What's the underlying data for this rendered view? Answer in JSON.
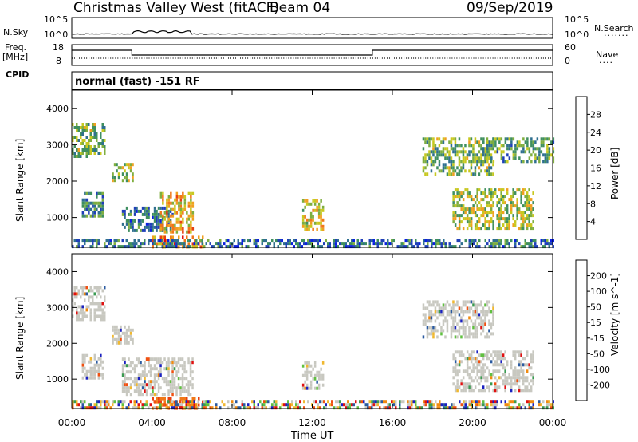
{
  "header": {
    "station": "Christmas Valley West (fitACF)",
    "beam": "Beam 04",
    "date": "09/Sep/2019"
  },
  "mode_text": "normal (fast) -151 RF",
  "left_labels": {
    "nsky": "N.Sky",
    "freq": "Freq.",
    "freq_unit": "[MHz]",
    "cpid": "CPID"
  },
  "right_labels": {
    "nsearch": "N.Search",
    "nsearch_marks": "·······",
    "nave": "Nave",
    "nave_marks": "····"
  },
  "noise_axis": {
    "top": "10^5",
    "bottom": "10^0"
  },
  "freq_axis": {
    "top": "18",
    "bottom": "8"
  },
  "nave_axis": {
    "top": "60",
    "bottom": "0"
  },
  "xaxis": {
    "label": "Time UT",
    "ticks": [
      "00:00",
      "04:00",
      "08:00",
      "12:00",
      "16:00",
      "20:00",
      "00:00"
    ]
  },
  "colors": {
    "power_scale": [
      "#0a1fe0",
      "#1f3fb8",
      "#2f6f8f",
      "#3f8f5f",
      "#7fae3f",
      "#c8c820",
      "#f0a020",
      "#f07818",
      "#e84010",
      "#e01010"
    ],
    "velocity_scale": [
      "#e01010",
      "#f05010",
      "#f08a10",
      "#f0b830",
      "#c8c8c0",
      "#c8c8c0",
      "#60c040",
      "#3a9a50",
      "#2a5aa0",
      "#1a20c0"
    ]
  },
  "chart_data": [
    {
      "type": "heatmap",
      "title": "",
      "ylabel": "Slant Range [km]",
      "xlabel": "",
      "ylim": [
        180,
        4500
      ],
      "yticks": [
        "1000",
        "2000",
        "3000",
        "4000"
      ],
      "colorbar": {
        "label": "Power [dB]",
        "range": [
          0,
          32
        ],
        "ticks": [
          "4",
          "8",
          "12",
          "16",
          "20",
          "24",
          "28"
        ]
      },
      "regions": [
        {
          "t0": 0.0,
          "t1": 1.6,
          "r0": 2700,
          "r1": 3600,
          "value": 14
        },
        {
          "t0": 2.0,
          "t1": 3.0,
          "r0": 2000,
          "r1": 2500,
          "value": 16
        },
        {
          "t0": 0.5,
          "t1": 1.5,
          "r0": 1000,
          "r1": 1700,
          "value": 10
        },
        {
          "t0": 2.5,
          "t1": 5.0,
          "r0": 600,
          "r1": 1300,
          "value": 8
        },
        {
          "t0": 4.4,
          "t1": 6.0,
          "r0": 600,
          "r1": 1700,
          "value": 20
        },
        {
          "t0": 4.0,
          "t1": 6.5,
          "r0": 200,
          "r1": 500,
          "value": 24
        },
        {
          "t0": 11.5,
          "t1": 12.5,
          "r0": 700,
          "r1": 1500,
          "value": 18
        },
        {
          "t0": 17.5,
          "t1": 21.0,
          "r0": 2200,
          "r1": 3200,
          "value": 14
        },
        {
          "t0": 20.5,
          "t1": 24.0,
          "r0": 2500,
          "r1": 3200,
          "value": 12
        },
        {
          "t0": 19.0,
          "t1": 23.0,
          "r0": 700,
          "r1": 1800,
          "value": 16
        },
        {
          "t0": 0.0,
          "t1": 24.0,
          "r0": 180,
          "r1": 420,
          "value": 8
        }
      ]
    },
    {
      "type": "heatmap",
      "title": "",
      "ylabel": "Slant Range [km]",
      "xlabel": "Time UT",
      "ylim": [
        180,
        4500
      ],
      "yticks": [
        "1000",
        "2000",
        "3000",
        "4000"
      ],
      "colorbar": {
        "label": "Velocity [m s^-1]",
        "ticks": [
          "-200",
          "-100",
          "-50",
          "-15",
          "15",
          "50",
          "100",
          "200"
        ]
      },
      "regions": [
        {
          "t0": 0.0,
          "t1": 1.6,
          "r0": 2700,
          "r1": 3600,
          "value": 0
        },
        {
          "t0": 2.0,
          "t1": 3.0,
          "r0": 2000,
          "r1": 2500,
          "value": 0
        },
        {
          "t0": 0.5,
          "t1": 1.5,
          "r0": 1000,
          "r1": 1700,
          "value": 0
        },
        {
          "t0": 2.5,
          "t1": 6.0,
          "r0": 600,
          "r1": 1600,
          "value": 0
        },
        {
          "t0": 4.0,
          "t1": 6.5,
          "r0": 200,
          "r1": 500,
          "value": -70
        },
        {
          "t0": 11.5,
          "t1": 12.5,
          "r0": 700,
          "r1": 1500,
          "value": 0
        },
        {
          "t0": 17.5,
          "t1": 21.0,
          "r0": 2200,
          "r1": 3200,
          "value": 0
        },
        {
          "t0": 19.0,
          "t1": 23.0,
          "r0": 700,
          "r1": 1800,
          "value": 0
        },
        {
          "t0": 0.0,
          "t1": 24.0,
          "r0": 180,
          "r1": 420,
          "value": 30
        }
      ]
    }
  ]
}
